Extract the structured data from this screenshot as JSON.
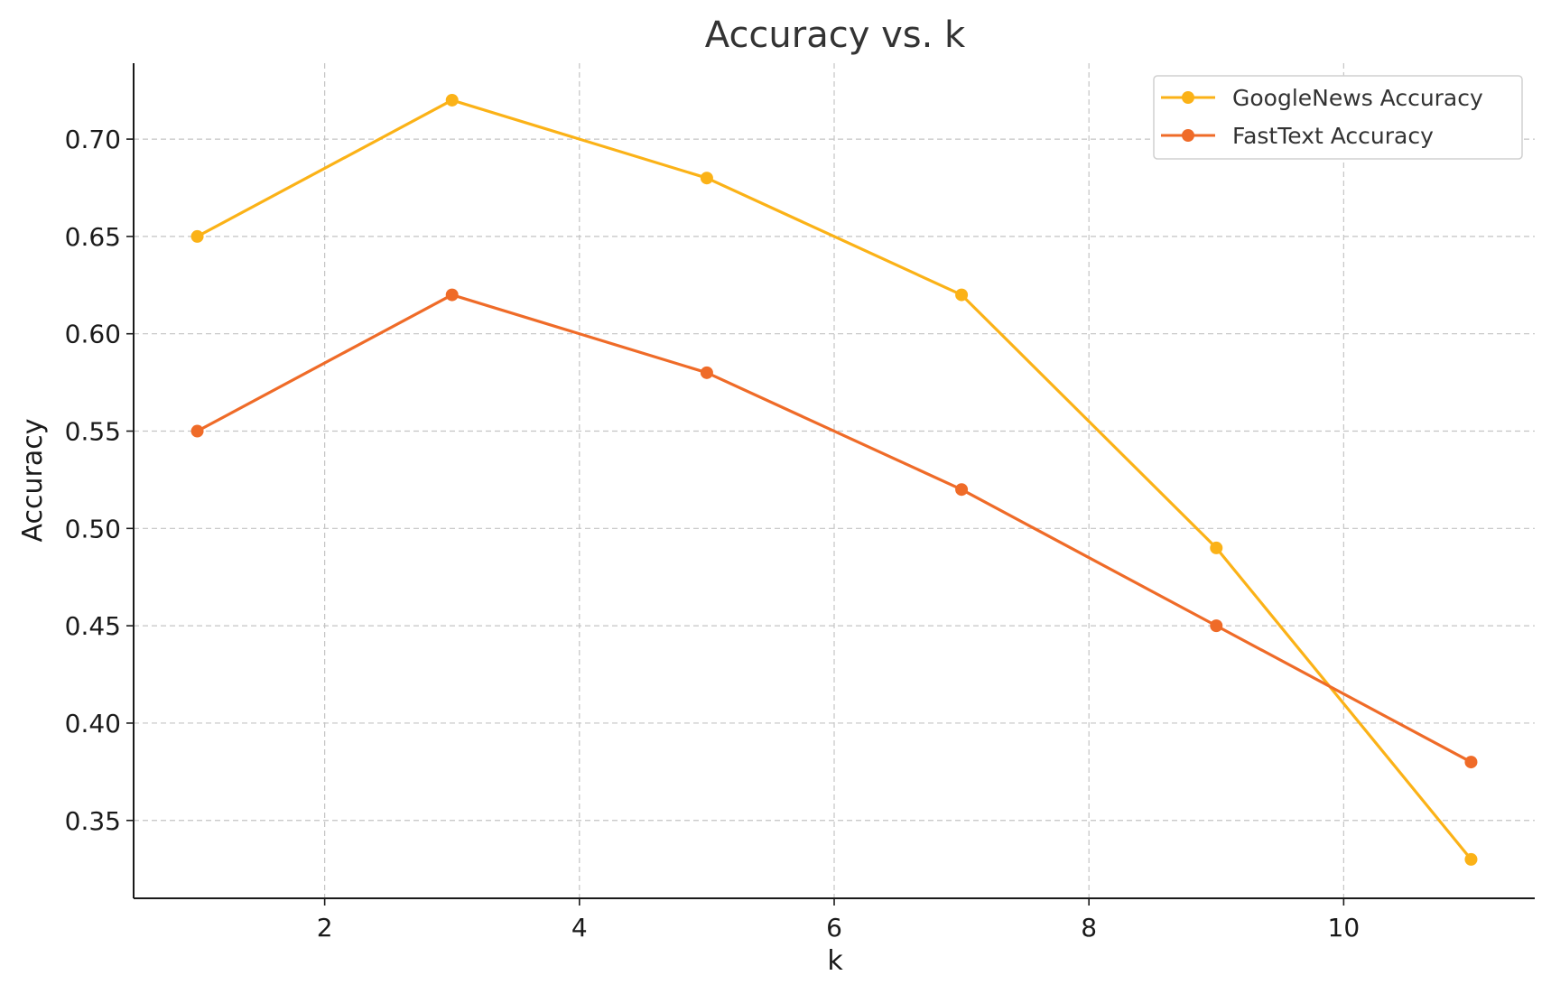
{
  "chart_data": {
    "type": "line",
    "title": "Accuracy vs. k",
    "xlabel": "k",
    "ylabel": "Accuracy",
    "x": [
      1,
      3,
      5,
      7,
      9,
      11
    ],
    "xlim": [
      0.5,
      11.5
    ],
    "ylim": [
      0.31,
      0.739
    ],
    "xticks": [
      2,
      4,
      6,
      8,
      10
    ],
    "xtick_labels": [
      "2",
      "4",
      "6",
      "8",
      "10"
    ],
    "yticks": [
      0.35,
      0.4,
      0.45,
      0.5,
      0.55,
      0.6,
      0.65,
      0.7
    ],
    "ytick_labels": [
      "0.35",
      "0.40",
      "0.45",
      "0.50",
      "0.55",
      "0.60",
      "0.65",
      "0.70"
    ],
    "grid": true,
    "legend_position": "top-right",
    "series": [
      {
        "name": "GoogleNews Accuracy",
        "color": "#FBB217",
        "values": [
          0.65,
          0.72,
          0.68,
          0.62,
          0.49,
          0.33
        ]
      },
      {
        "name": "FastText Accuracy",
        "color": "#EF6B28",
        "values": [
          0.55,
          0.62,
          0.58,
          0.52,
          0.45,
          0.38
        ]
      }
    ]
  }
}
